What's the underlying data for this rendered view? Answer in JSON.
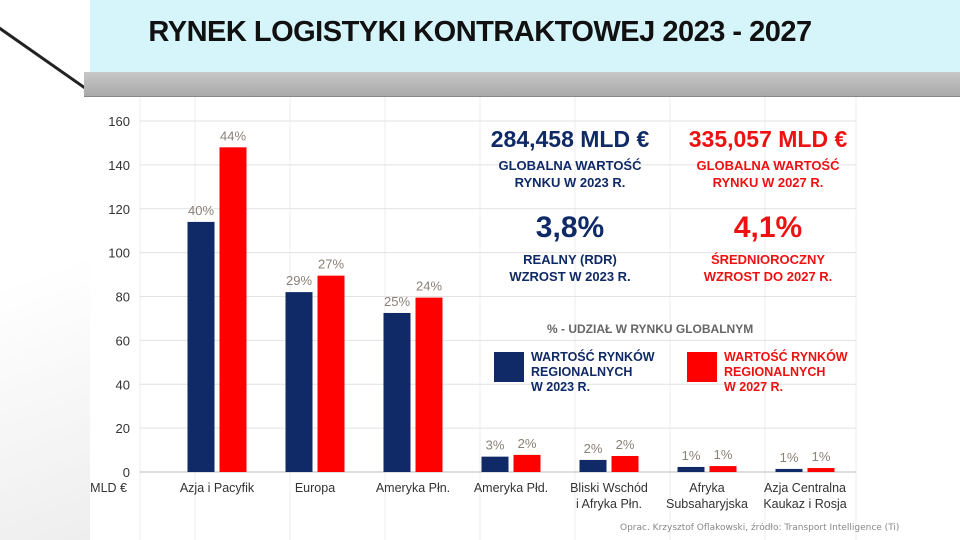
{
  "title": "RYNEK LOGISTYKI KONTRAKTOWEJ  2023 - 2027",
  "stats": {
    "value_2023": "284,458 MLD €",
    "label_2023": [
      "GLOBALNA WARTOŚĆ",
      "RYNKU W 2023 R."
    ],
    "value_2027": "335,057 MLD €",
    "label_2027": [
      "GLOBALNA WARTOŚĆ",
      "RYNKU W 2027 R."
    ],
    "growth_2023": "3,8%",
    "growth_2023_label": [
      "REALNY (RDR)",
      "WZROST W 2023 R."
    ],
    "growth_2027": "4,1%",
    "growth_2027_label": [
      "ŚREDNIOROCZNY",
      "WZROST DO 2027 R."
    ]
  },
  "note": "% - UDZIAŁ W RYNKU GLOBALNYM",
  "source": "Oprac. Krzysztof Oflakowski, źródło: Transport Intelligence (Ti)",
  "colors": {
    "navy": "#0f2a66",
    "red": "#ff0000"
  },
  "chart_data": {
    "type": "bar",
    "title": "RYNEK LOGISTYKI KONTRAKTOWEJ  2023 - 2027",
    "ylabel": "MLD €",
    "ylim": [
      0,
      160
    ],
    "yticks": [
      0,
      20,
      40,
      60,
      80,
      100,
      120,
      140,
      160
    ],
    "grid": true,
    "legend_position": "right",
    "categories": [
      [
        "Azja i Pacyfik"
      ],
      [
        "Europa"
      ],
      [
        "Ameryka Płn."
      ],
      [
        "Ameryka Płd."
      ],
      [
        "Bliski Wschód",
        "i Afryka Płn."
      ],
      [
        "Afryka",
        "Subsaharyjska"
      ],
      [
        "Azja Centralna",
        "Kaukaz i Rosja"
      ]
    ],
    "series": [
      {
        "name": "WARTOŚĆ RYNKÓW REGIONALNYCH W 2023 R.",
        "legend": [
          "WARTOŚĆ RYNKÓW",
          "REGIONALNYCH",
          "W 2023 R."
        ],
        "color": "#0f2a66",
        "values": [
          114,
          82,
          72.5,
          7,
          5.5,
          2.3,
          1.4
        ],
        "labels": [
          "40%",
          "29%",
          "25%",
          "3%",
          "2%",
          "1%",
          "1%"
        ]
      },
      {
        "name": "WARTOŚĆ RYNKÓW REGIONALNYCH W 2027 R.",
        "legend": [
          "WARTOŚĆ RYNKÓW",
          "REGIONALNYCH",
          "W 2027 R."
        ],
        "color": "#ff0000",
        "values": [
          148,
          89.5,
          79.5,
          7.8,
          7.3,
          2.7,
          1.8
        ],
        "labels": [
          "44%",
          "27%",
          "24%",
          "2%",
          "2%",
          "1%",
          "1%"
        ]
      }
    ]
  }
}
